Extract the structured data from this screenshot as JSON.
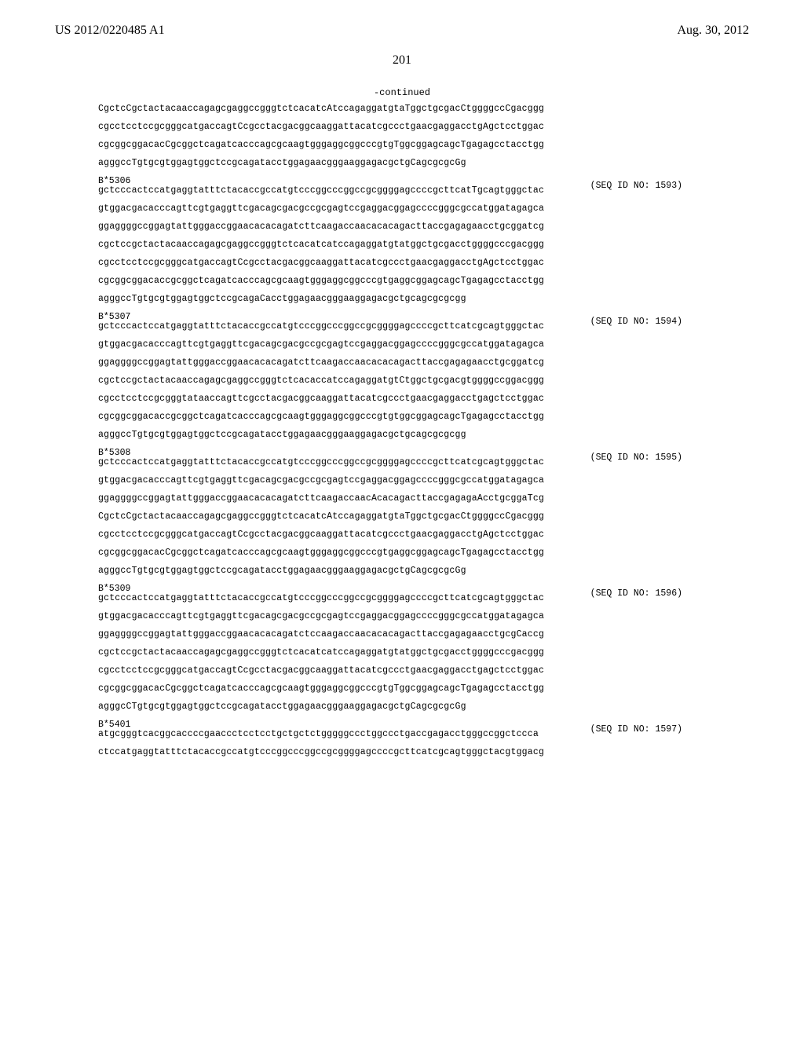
{
  "header": {
    "pub_number": "US 2012/0220485 A1",
    "pub_date": "Aug. 30, 2012"
  },
  "page_number": "201",
  "continued_label": "-continued",
  "blocks": [
    {
      "lines": [
        "CgctcCgctactacaaccagagcgaggccgggtctcacatcAtccagaggatgtaTggctgcgacCtggggccCgacggg",
        "cgcctcctccgcgggcatgaccagtCcgcctacgacggcaaggattacatcgccctgaacgaggacctgAgctcctggac",
        "cgcggcggacacCgcggctcagatcacccagcgcaagtgggaggcggcccgtgTggcggagcagcTgagagcctacctgg",
        "agggccTgtgcgtggagtggctccgcagatacctggagaacgggaaggagacgctgCagcgcgcGg"
      ]
    },
    {
      "tag": "B*5306",
      "seq_id": "(SEQ ID NO: 1593)",
      "lines": [
        "gctcccactccatgaggtatttctacaccgccatgtcccggcccggccgcggggagccccgcttcatTgcagtgggctac",
        "gtggacgacacccagttcgtgaggttcgacagcgacgccgcgagtccgaggacggagccccgggcgccatggatagagca",
        "ggaggggccggagtattgggaccggaacacacagatcttcaagaccaacacacagacttaccgagagaacctgcggatcg",
        "cgctccgctactacaaccagagcgaggccgggtctcacatcatccagaggatgtatggctgcgacctggggcccgacggg",
        "cgcctcctccgcgggcatgaccagtCcgcctacgacggcaaggattacatcgccctgaacgaggacctgAgctcctggac",
        "cgcggcggacaccgcggctcagatcacccagcgcaagtgggaggcggcccgtgaggcggagcagcTgagagcctacctgg",
        "agggccTgtgcgtggagtggctccgcagaCacctggagaacgggaaggagacgctgcagcgcgcgg"
      ]
    },
    {
      "tag": "B*5307",
      "seq_id": "(SEQ ID NO: 1594)",
      "lines": [
        "gctcccactccatgaggtatttctacaccgccatgtcccggcccggccgcggggagccccgcttcatcgcagtgggctac",
        "gtggacgacacccagttcgtgaggttcgacagcgacgccgcgagtccgaggacggagccccgggcgccatggatagagca",
        "ggaggggccggagtattgggaccggaacacacagatcttcaagaccaacacacagacttaccgagagaacctgcggatcg",
        "cgctccgctactacaaccagagcgaggccgggtctcacaccatccagaggatgtCtggctgcgacgtggggccggacggg",
        "cgcctcctccgcgggtataaccagttcgcctacgacggcaaggattacatcgccctgaacgaggacctgagctcctggac",
        "cgcggcggacaccgcggctcagatcacccagcgcaagtgggaggcggcccgtgtggcggagcagcTgagagcctacctgg",
        "agggccTgtgcgtggagtggctccgcagatacctggagaacgggaaggagacgctgcagcgcgcgg"
      ]
    },
    {
      "tag": "B*5308",
      "seq_id": "(SEQ ID NO: 1595)",
      "lines": [
        "gctcccactccatgaggtatttctacaccgccatgtcccggcccggccgcggggagccccgcttcatcgcagtgggctac",
        "gtggacgacacccagttcgtgaggttcgacagcgacgccgcgagtccgaggacggagccccgggcgccatggatagagca",
        "ggaggggccggagtattgggaccggaacacacagatcttcaagaccaacAcacagacttaccgagagaAcctgcggaTcg",
        "CgctcCgctactacaaccagagcgaggccgggtctcacatcAtccagaggatgtaTggctgcgacCtggggccCgacggg",
        "cgcctcctccgcgggcatgaccagtCcgcctacgacggcaaggattacatcgccctgaacgaggacctgAgctcctggac",
        "cgcggcggacacCgcggctcagatcacccagcgcaagtgggaggcggcccgtgaggcggagcagcTgagagcctacctgg",
        "agggccTgtgcgtggagtggctccgcagatacctggagaacgggaaggagacgctgCagcgcgcGg"
      ]
    },
    {
      "tag": "B*5309",
      "seq_id": "(SEQ ID NO: 1596)",
      "lines": [
        "gctcccactccatgaggtatttctacaccgccatgtcccggcccggccgcggggagccccgcttcatcgcagtgggctac",
        "gtggacgacacccagttcgtgaggttcgacagcgacgccgcgagtccgaggacggagccccgggcgccatggatagagca",
        "ggaggggccggagtattgggaccggaacacacagatctccaagaccaacacacagacttaccgagagaacctgcgCaccg",
        "cgctccgctactacaaccagagcgaggccgggtctcacatcatccagaggatgtatggctgcgacctggggcccgacggg",
        "cgcctcctccgcgggcatgaccagtCcgcctacgacggcaaggattacatcgccctgaacgaggacctgagctcctggac",
        "cgcggcggacacCgcggctcagatcacccagcgcaagtgggaggcggcccgtgTggcggagcagcTgagagcctacctgg",
        "agggcCTgtgcgtggagtggctccgcagatacctggagaacgggaaggagacgctgCagcgcgcGg"
      ]
    },
    {
      "tag": "B*5401",
      "seq_id": "(SEQ ID NO: 1597)",
      "lines": [
        "atgcgggtcacggcaccccgaaccctcctcctgctgctctgggggccctggccctgaccgagacctgggccggctccca",
        "ctccatgaggtatttctacaccgccatgtcccggcccggccgcggggagccccgcttcatcgcagtgggctacgtggacg"
      ]
    }
  ]
}
